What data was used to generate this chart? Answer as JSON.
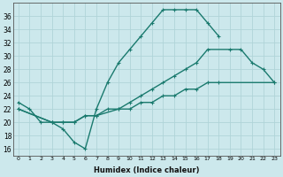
{
  "xlabel": "Humidex (Indice chaleur)",
  "bg_color": "#cce8ec",
  "grid_color": "#b0d4d8",
  "line_color": "#1a7a6e",
  "xlim": [
    -0.5,
    23.5
  ],
  "ylim": [
    15,
    38
  ],
  "xticks": [
    0,
    1,
    2,
    3,
    4,
    5,
    6,
    7,
    8,
    9,
    10,
    11,
    12,
    13,
    14,
    15,
    16,
    17,
    18,
    19,
    20,
    21,
    22,
    23
  ],
  "yticks": [
    16,
    18,
    20,
    22,
    24,
    26,
    28,
    30,
    32,
    34,
    36
  ],
  "curve1_x": [
    0,
    1,
    2,
    3,
    4,
    5,
    6,
    7,
    8,
    9,
    10,
    11,
    12,
    13,
    14,
    15,
    16,
    17,
    18
  ],
  "curve1_y": [
    23,
    22,
    20,
    20,
    19,
    17,
    16,
    22,
    26,
    29,
    31,
    33,
    35,
    37,
    37,
    37,
    37,
    35,
    33
  ],
  "curve2_x": [
    0,
    3,
    4,
    5,
    6,
    7,
    9,
    10,
    11,
    12,
    13,
    14,
    15,
    16,
    17,
    19,
    20,
    21,
    22,
    23
  ],
  "curve2_y": [
    22,
    20,
    20,
    20,
    21,
    21,
    22,
    23,
    24,
    25,
    26,
    27,
    28,
    29,
    31,
    31,
    31,
    29,
    28,
    26
  ],
  "curve3_x": [
    0,
    3,
    4,
    5,
    6,
    7,
    8,
    9,
    10,
    11,
    12,
    13,
    14,
    15,
    16,
    17,
    18,
    23
  ],
  "curve3_y": [
    22,
    20,
    20,
    20,
    21,
    21,
    22,
    22,
    22,
    23,
    23,
    24,
    24,
    25,
    25,
    26,
    26,
    26
  ]
}
